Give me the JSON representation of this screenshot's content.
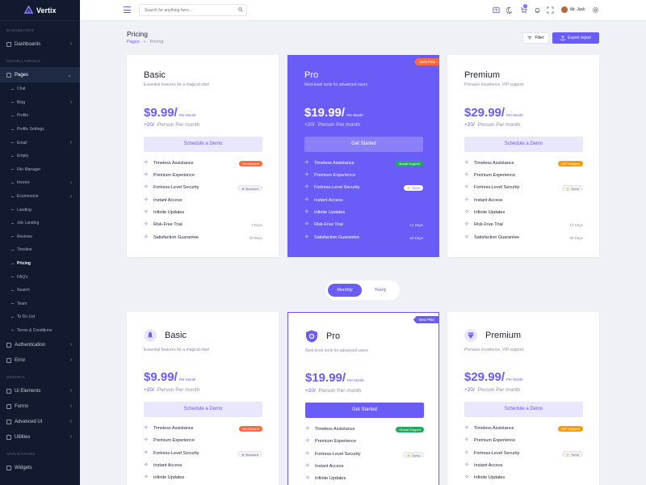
{
  "app": {
    "name": "Vertix"
  },
  "sidebar": {
    "sections": {
      "dashboards": "DASHBOARDS",
      "misc": "MISCELLANEOUS",
      "general": "GENERAL",
      "applications": "APPLICATIONS"
    },
    "items": {
      "dashboards": "Dashboards",
      "pages": "Pages",
      "authentication": "Authentication",
      "error": "Error",
      "ui_elements": "Ui Elements",
      "forms": "Forms",
      "advanced_ui": "Advanced UI",
      "utilities": "Utilities",
      "widgets": "Widgets"
    },
    "sub": [
      "Chat",
      "Blog",
      "Profile",
      "Profile Settings",
      "Email",
      "Empty",
      "File Manager",
      "Invoice",
      "Ecommerce",
      "Landing",
      "Job Landing",
      "Reviews",
      "Timeline",
      "Pricing",
      "FAQ's",
      "Search",
      "Team",
      "To Do List",
      "Terms & Conditions"
    ]
  },
  "topbar": {
    "search_placeholder": "Search for anything here...",
    "cart_count": "5",
    "user": "Mr. Jack"
  },
  "page": {
    "title": "Pricing",
    "breadcrumb_home": "Pages",
    "breadcrumb_sep": "»",
    "breadcrumb_current": "Pricing",
    "filter": "Filter",
    "export": "Export report"
  },
  "toggle": {
    "monthly": "Monthly",
    "yearly": "Yearly"
  },
  "plans": {
    "basic": {
      "name": "Basic",
      "desc": "Essential features for a magical start",
      "price": "$9.99/",
      "per": "Per Month",
      "extra": "+20/",
      "extra_label": "Person Per month",
      "cta": "Schedule a Demo"
    },
    "pro": {
      "name": "Pro",
      "desc": "Next-level tools for advanced users",
      "price": "$19.99/",
      "per": "Per Month",
      "extra": "+20/",
      "extra_label": "Person Per month",
      "cta": "Get Started",
      "ribbon": "Best Plan"
    },
    "premium": {
      "name": "Premium",
      "desc": "Pinnacle excellence, VIP support.",
      "price": "$29.99/",
      "per": "Per Month",
      "extra": "+20/",
      "extra_label": "Person Per month",
      "cta": "Schedule a Demo"
    }
  },
  "features": {
    "f1": "Timeless Assistance",
    "f2": "Premium Experience",
    "f3": "Fortress-Level Security",
    "f4": "Instant Access",
    "f5": "Infinite Updates",
    "f6": "Risk-Free Trial",
    "f7": "Satisfaction Guarantee"
  },
  "tags": {
    "basic1": "On-demand",
    "pro1": "Global Support",
    "premium1": "24/7 Support",
    "basic3": "Standard",
    "pro3": "Turbo",
    "premium3": "Turbo"
  },
  "days": {
    "basic6": "7 Days",
    "basic7": "30 Days",
    "pro6": "14 Days",
    "pro7": "60 Days",
    "premium6": "14 Days",
    "premium7": "60 Days"
  },
  "colors": {
    "accent": "#6a5cf6",
    "sidebar": "#111a2e",
    "orange": "#ff6b3d",
    "green": "#22a85a",
    "amber": "#f59e0b"
  }
}
